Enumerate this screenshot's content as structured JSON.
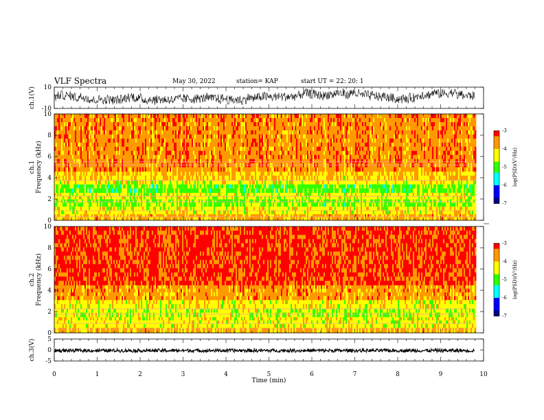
{
  "header": {
    "title": "VLF Spectra",
    "date": "May 30, 2022",
    "station": "station= KAP",
    "start": "start UT =  22: 20: 1"
  },
  "chart_data": [
    {
      "type": "line",
      "name": "ch1-waveform",
      "ylabel": "ch.1(V)",
      "ylim": [
        -10,
        10
      ],
      "yticks": [
        "10",
        "-10"
      ],
      "xlim": [
        0,
        10
      ],
      "data_end_min": 9.8,
      "amplitude_range": [
        -7,
        9
      ]
    },
    {
      "type": "heatmap",
      "name": "ch1-spectrogram",
      "ylabel": "ch.1\nFrequency (kHz)",
      "ylim": [
        0,
        10
      ],
      "yticks": [
        "0",
        "2",
        "4",
        "6",
        "8",
        "10"
      ],
      "xlim": [
        0,
        10
      ],
      "data_end_min": 9.8,
      "bands_khz": [
        {
          "from": 0.0,
          "to": 0.6,
          "level": -3.9
        },
        {
          "from": 0.6,
          "to": 1.3,
          "level": -4.3
        },
        {
          "from": 1.3,
          "to": 2.0,
          "level": -4.7
        },
        {
          "from": 2.0,
          "to": 2.6,
          "level": -4.4
        },
        {
          "from": 2.6,
          "to": 3.4,
          "level": -4.9
        },
        {
          "from": 3.4,
          "to": 3.8,
          "level": -4.3
        },
        {
          "from": 3.8,
          "to": 4.6,
          "level": -4.0
        },
        {
          "from": 4.6,
          "to": 10.0,
          "level": -3.6
        }
      ],
      "colorbar": {
        "label": "log(PSD)(V²/Hz)",
        "range": [
          -7,
          -3
        ],
        "ticks": [
          "-3",
          "-4",
          "-5",
          "-6",
          "-7"
        ]
      }
    },
    {
      "type": "heatmap",
      "name": "ch2-spectrogram",
      "ylabel": "ch.2\nFrequency (kHz)",
      "ylim": [
        0,
        10
      ],
      "yticks": [
        "0",
        "2",
        "4",
        "6",
        "8",
        "10"
      ],
      "xlim": [
        0,
        10
      ],
      "data_end_min": 9.8,
      "bands_khz": [
        {
          "from": 0.0,
          "to": 0.5,
          "level": -3.9
        },
        {
          "from": 0.5,
          "to": 1.5,
          "level": -4.3
        },
        {
          "from": 1.5,
          "to": 2.3,
          "level": -4.5
        },
        {
          "from": 2.3,
          "to": 3.1,
          "level": -4.3
        },
        {
          "from": 3.1,
          "to": 4.5,
          "level": -3.7
        },
        {
          "from": 4.5,
          "to": 10.0,
          "level": -3.2
        }
      ],
      "colorbar": {
        "label": "log(PSD)(V²/Hz)",
        "range": [
          -7,
          -3
        ],
        "ticks": [
          "-3",
          "-4",
          "-5",
          "-6",
          "-7"
        ]
      }
    },
    {
      "type": "line",
      "name": "ch3-waveform",
      "ylabel": "ch.3(V)",
      "ylim": [
        -5,
        5
      ],
      "yticks": [
        "5",
        "0",
        "-5"
      ],
      "xlim": [
        0,
        10
      ],
      "data_end_min": 9.8,
      "amplitude_range": [
        -1,
        0.5
      ]
    }
  ],
  "xaxis": {
    "label": "Time (min)",
    "ticks": [
      "0",
      "1",
      "2",
      "3",
      "4",
      "5",
      "6",
      "7",
      "8",
      "9",
      "10"
    ]
  },
  "colors": {
    "colormap": [
      "#00007f",
      "#0000ff",
      "#00ffff",
      "#33ff00",
      "#ffff00",
      "#ff9900",
      "#ff0000",
      "#ffffff"
    ]
  }
}
